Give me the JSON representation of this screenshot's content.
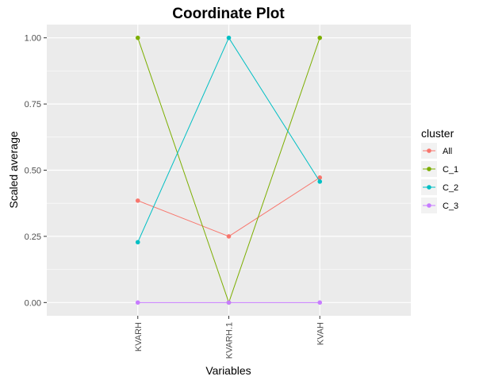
{
  "chart_data": {
    "type": "line",
    "title": "Coordinate Plot",
    "xlabel": "Variables",
    "ylabel": "Scaled average",
    "categories": [
      "KVARH",
      "KVARH.1",
      "KVAH"
    ],
    "ylim": [
      -0.05,
      1.05
    ],
    "yticks": [
      0,
      0.25,
      0.5,
      0.75,
      1
    ],
    "ytick_labels": [
      "0.00",
      "0.25",
      "0.50",
      "0.75",
      "1.00"
    ],
    "grid": true,
    "panel_background": "#ebebeb",
    "legend": {
      "title": "cluster",
      "placement": "right"
    },
    "series": [
      {
        "name": "All",
        "color": "#F8766D",
        "values": [
          0.385,
          0.25,
          0.472
        ]
      },
      {
        "name": "C_1",
        "color": "#7CAE00",
        "values": [
          1.0,
          0.0,
          1.0
        ]
      },
      {
        "name": "C_2",
        "color": "#00BFC4",
        "values": [
          0.228,
          1.0,
          0.457
        ]
      },
      {
        "name": "C_3",
        "color": "#C77CFF",
        "values": [
          0.0,
          0.0,
          0.0
        ]
      }
    ]
  }
}
